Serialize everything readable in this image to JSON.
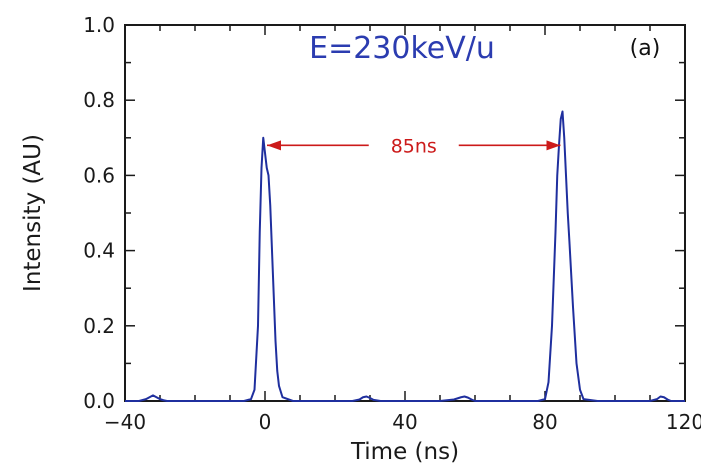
{
  "chart_data": {
    "type": "line",
    "title": "E=230keV/u",
    "panel_label": "(a)",
    "xlabel": "Time (ns)",
    "ylabel": "Intensity (AU)",
    "xlim": [
      -40,
      120
    ],
    "ylim": [
      0,
      1.0
    ],
    "x_ticks": [
      -40,
      0,
      40,
      80,
      120
    ],
    "x_tick_labels": [
      "−40",
      "0",
      "40",
      "80",
      "120"
    ],
    "y_ticks": [
      0.0,
      0.2,
      0.4,
      0.6,
      0.8,
      1.0
    ],
    "y_tick_labels": [
      "0.0",
      "0.2",
      "0.4",
      "0.6",
      "0.8",
      "1.0"
    ],
    "grid": false,
    "series": [
      {
        "color": "#1f2f9e",
        "x": [
          -40,
          -36,
          -34,
          -33,
          -32,
          -31,
          -30,
          -29,
          -28,
          -26,
          -20,
          -10,
          -6,
          -4,
          -3,
          -2,
          -1.5,
          -1,
          -0.5,
          0,
          0.5,
          1,
          1.5,
          2,
          2.5,
          3,
          3.5,
          4,
          5,
          8,
          20,
          25,
          27,
          28,
          29,
          30,
          31,
          33,
          40,
          50,
          54,
          56,
          57,
          58,
          59,
          60,
          62,
          70,
          78,
          80,
          81,
          82,
          83,
          83.5,
          84,
          84.5,
          85,
          85.5,
          86,
          86.5,
          87,
          88,
          89,
          90,
          91,
          95,
          105,
          110,
          112,
          113,
          114,
          115,
          116,
          120
        ],
        "values": [
          0.0,
          0.0,
          0.005,
          0.01,
          0.015,
          0.01,
          0.005,
          0.002,
          0.0,
          0.0,
          0.0,
          0.0,
          0.0,
          0.005,
          0.03,
          0.2,
          0.45,
          0.62,
          0.7,
          0.66,
          0.62,
          0.6,
          0.52,
          0.4,
          0.28,
          0.16,
          0.08,
          0.04,
          0.01,
          0.0,
          0.0,
          0.0,
          0.004,
          0.01,
          0.012,
          0.008,
          0.003,
          0.0,
          0.0,
          0.0,
          0.004,
          0.01,
          0.012,
          0.009,
          0.004,
          0.0,
          0.0,
          0.0,
          0.0,
          0.005,
          0.05,
          0.2,
          0.45,
          0.6,
          0.68,
          0.75,
          0.77,
          0.7,
          0.6,
          0.5,
          0.42,
          0.25,
          0.1,
          0.03,
          0.005,
          0.0,
          0.0,
          0.0,
          0.005,
          0.012,
          0.01,
          0.004,
          0.0,
          0.0
        ]
      }
    ],
    "annotations": [
      {
        "text": "85ns",
        "x_from": 0,
        "x_to": 85,
        "y": 0.68,
        "color": "#cc1a1a"
      }
    ]
  }
}
